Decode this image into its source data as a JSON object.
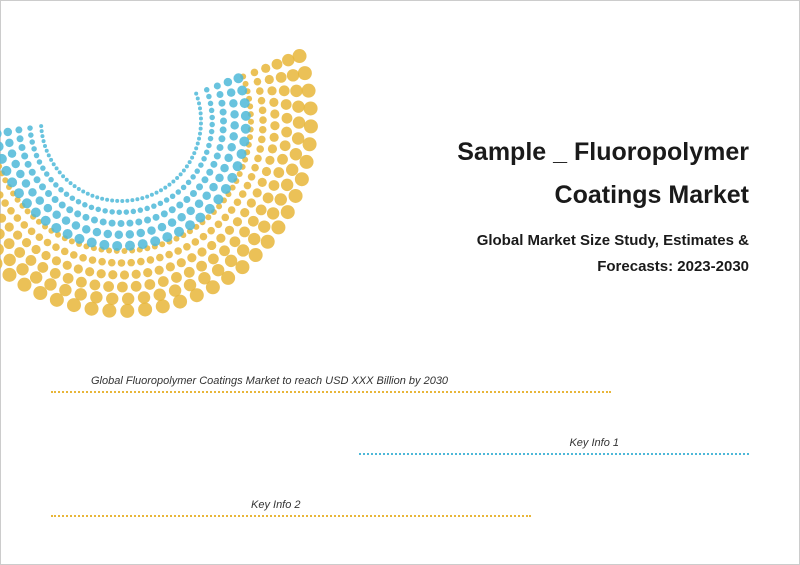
{
  "title": "Sample _ Fluoropolymer Coatings Market",
  "subtitle": "Global Market Size Study, Estimates & Forecasts: 2023-2030",
  "info_lines": {
    "line1": "Global Fluoropolymer Coatings Market to reach USD XXX Billion by 2030",
    "line2": "Key Info 1",
    "line3": "Key Info 2"
  },
  "colors": {
    "yellow": "#e8b63a",
    "blue": "#4db8d8",
    "text_dark": "#1a1a1a",
    "text_body": "#333333",
    "border": "#cccccc"
  },
  "decoration": {
    "type": "dotted-spiral",
    "color_outer": "#e8b63a",
    "color_inner": "#4db8d8"
  }
}
